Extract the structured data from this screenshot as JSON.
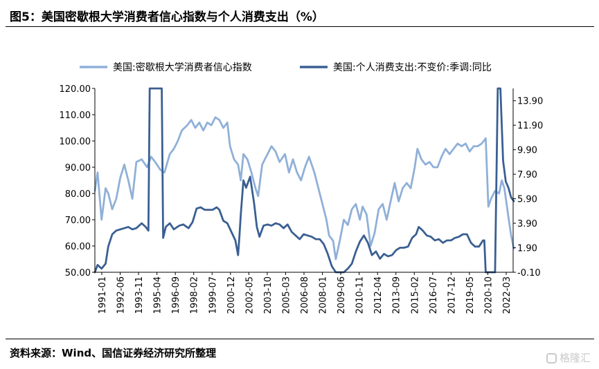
{
  "figure": {
    "title": "图5：美国密歇根大学消费者信心指数与个人消费支出（%）",
    "source": "资料来源：Wind、国信证券经济研究所整理",
    "watermark": "格隆汇"
  },
  "chart_data": {
    "type": "line",
    "legend_position": "top",
    "grid": false,
    "x_tick_labels": [
      "1991-01",
      "1992-06",
      "1993-11",
      "1995-04",
      "1996-09",
      "1998-02",
      "1999-07",
      "2000-12",
      "2002-05",
      "2003-10",
      "2005-03",
      "2006-08",
      "2008-01",
      "2009-06",
      "2010-11",
      "2012-04",
      "2013-09",
      "2015-02",
      "2016-07",
      "2017-12",
      "2019-05",
      "2020-10",
      "2022-03"
    ],
    "y_left": {
      "lim": [
        50,
        120
      ],
      "ticks": [
        "50.00",
        "60.00",
        "70.00",
        "80.00",
        "90.00",
        "100.00",
        "110.00",
        "120.00"
      ]
    },
    "y_right": {
      "lim": [
        -0.1,
        14.9
      ],
      "ticks": [
        "-0.10",
        "1.90",
        "3.90",
        "5.90",
        "7.90",
        "9.90",
        "11.90",
        "13.90"
      ]
    },
    "series": [
      {
        "name": "美国:密歇根大学消费者信心指数",
        "axis": "left",
        "color": "#8fb0d8",
        "x": [
          1991.0,
          1991.2,
          1991.5,
          1991.8,
          1992.0,
          1992.3,
          1992.6,
          1992.9,
          1993.2,
          1993.5,
          1993.8,
          1994.1,
          1994.5,
          1994.9,
          1995.2,
          1995.5,
          1995.9,
          1996.2,
          1996.6,
          1996.9,
          1997.2,
          1997.5,
          1997.9,
          1998.2,
          1998.5,
          1998.8,
          1999.1,
          1999.4,
          1999.7,
          2000.0,
          2000.3,
          2000.6,
          2000.9,
          2001.1,
          2001.4,
          2001.7,
          2001.9,
          2002.1,
          2002.4,
          2002.7,
          2003.0,
          2003.2,
          2003.5,
          2003.8,
          2004.2,
          2004.5,
          2004.8,
          2005.2,
          2005.5,
          2005.8,
          2006.1,
          2006.4,
          2006.7,
          2007.0,
          2007.4,
          2007.7,
          2008.0,
          2008.3,
          2008.5,
          2008.8,
          2009.0,
          2009.3,
          2009.6,
          2009.9,
          2010.2,
          2010.5,
          2010.8,
          2011.0,
          2011.3,
          2011.6,
          2011.9,
          2012.2,
          2012.5,
          2012.8,
          2013.1,
          2013.4,
          2013.7,
          2014.0,
          2014.3,
          2014.6,
          2014.9,
          2015.1,
          2015.4,
          2015.7,
          2016.0,
          2016.3,
          2016.6,
          2016.9,
          2017.2,
          2017.5,
          2017.8,
          2018.1,
          2018.4,
          2018.7,
          2019.0,
          2019.3,
          2019.6,
          2019.9,
          2020.2,
          2020.4,
          2020.6,
          2020.9,
          2021.2,
          2021.4,
          2021.6,
          2021.9,
          2022.1,
          2022.3
        ],
        "values": [
          81,
          88,
          70,
          82,
          80,
          74,
          78,
          86,
          91,
          85,
          78,
          92,
          93,
          90,
          94,
          92,
          89,
          88,
          95,
          97,
          100,
          104,
          106,
          108,
          105,
          107,
          104,
          107,
          106,
          109,
          108,
          105,
          107,
          98,
          93,
          91,
          85,
          95,
          93,
          88,
          82,
          79,
          91,
          94,
          98,
          96,
          92,
          95,
          88,
          93,
          88,
          85,
          90,
          94,
          88,
          82,
          76,
          70,
          64,
          62,
          55,
          62,
          70,
          68,
          74,
          76,
          70,
          75,
          72,
          60,
          65,
          74,
          76,
          70,
          77,
          84,
          77,
          82,
          84,
          82,
          90,
          97,
          93,
          91,
          92,
          90,
          90,
          94,
          97,
          95,
          97,
          99,
          98,
          99,
          96,
          98,
          98,
          99,
          101,
          75,
          78,
          81,
          80,
          85,
          82,
          71,
          64,
          59
        ]
      },
      {
        "name": "美国:个人消费支出:不变价:季调:同比",
        "axis": "right",
        "color": "#3a5f92",
        "x": [
          1991.0,
          1991.2,
          1991.5,
          1991.8,
          1992.0,
          1992.3,
          1992.6,
          1992.9,
          1993.2,
          1993.5,
          1993.8,
          1994.1,
          1994.5,
          1994.8,
          1995.0,
          1995.1,
          1995.3,
          1995.6,
          1995.8,
          1996.0,
          1996.1,
          1996.3,
          1996.6,
          1996.9,
          1997.3,
          1997.6,
          1998.0,
          1998.3,
          1998.6,
          1998.9,
          1999.2,
          1999.5,
          1999.8,
          2000.1,
          2000.3,
          2000.6,
          2000.9,
          2001.2,
          2001.5,
          2001.7,
          2001.8,
          2001.9,
          2002.1,
          2002.3,
          2002.6,
          2002.9,
          2003.1,
          2003.3,
          2003.6,
          2003.9,
          2004.2,
          2004.5,
          2004.8,
          2005.1,
          2005.4,
          2005.7,
          2006.0,
          2006.3,
          2006.6,
          2006.9,
          2007.2,
          2007.5,
          2007.8,
          2008.1,
          2008.4,
          2008.7,
          2009.0,
          2009.3,
          2009.6,
          2009.9,
          2010.2,
          2010.5,
          2010.8,
          2011.1,
          2011.4,
          2011.7,
          2012.0,
          2012.3,
          2012.6,
          2012.9,
          2013.2,
          2013.5,
          2013.8,
          2014.1,
          2014.4,
          2014.7,
          2015.0,
          2015.2,
          2015.5,
          2015.8,
          2016.1,
          2016.4,
          2016.7,
          2017.0,
          2017.3,
          2017.6,
          2017.9,
          2018.2,
          2018.5,
          2018.8,
          2019.1,
          2019.4,
          2019.7,
          2020.0,
          2020.1,
          2020.2,
          2020.4,
          2020.6,
          2020.9,
          2021.1,
          2021.3,
          2021.5,
          2021.7,
          2021.9,
          2022.1,
          2022.3
        ],
        "values": [
          -0.1,
          0.5,
          0.2,
          0.6,
          2.0,
          3.0,
          3.3,
          3.4,
          3.5,
          3.6,
          3.4,
          3.5,
          3.9,
          3.6,
          3.3,
          14.9,
          14.9,
          14.9,
          14.9,
          14.9,
          2.7,
          3.6,
          3.9,
          3.4,
          3.7,
          3.8,
          3.5,
          4.0,
          5.1,
          5.2,
          5.0,
          5.0,
          5.0,
          5.2,
          5.0,
          4.1,
          3.9,
          3.2,
          2.5,
          1.3,
          2.8,
          4.6,
          7.4,
          6.8,
          7.7,
          5.5,
          3.6,
          2.8,
          3.7,
          3.8,
          3.7,
          3.9,
          3.8,
          3.5,
          3.8,
          3.2,
          2.9,
          2.6,
          3.0,
          2.9,
          2.8,
          2.6,
          2.6,
          2.2,
          1.4,
          0.4,
          -0.1,
          -0.1,
          -0.1,
          0.2,
          0.6,
          1.6,
          2.4,
          2.9,
          2.3,
          1.3,
          1.6,
          1.0,
          1.4,
          1.2,
          1.3,
          1.7,
          1.9,
          1.9,
          2.0,
          2.7,
          3.0,
          3.6,
          3.3,
          2.9,
          2.8,
          2.5,
          2.6,
          2.3,
          2.5,
          2.5,
          2.7,
          2.8,
          3.0,
          3.0,
          2.3,
          2.0,
          2.0,
          2.5,
          2.5,
          -0.1,
          -0.1,
          -0.1,
          -0.1,
          14.9,
          14.9,
          9.0,
          7.3,
          6.8,
          6.0,
          5.7
        ]
      }
    ]
  }
}
